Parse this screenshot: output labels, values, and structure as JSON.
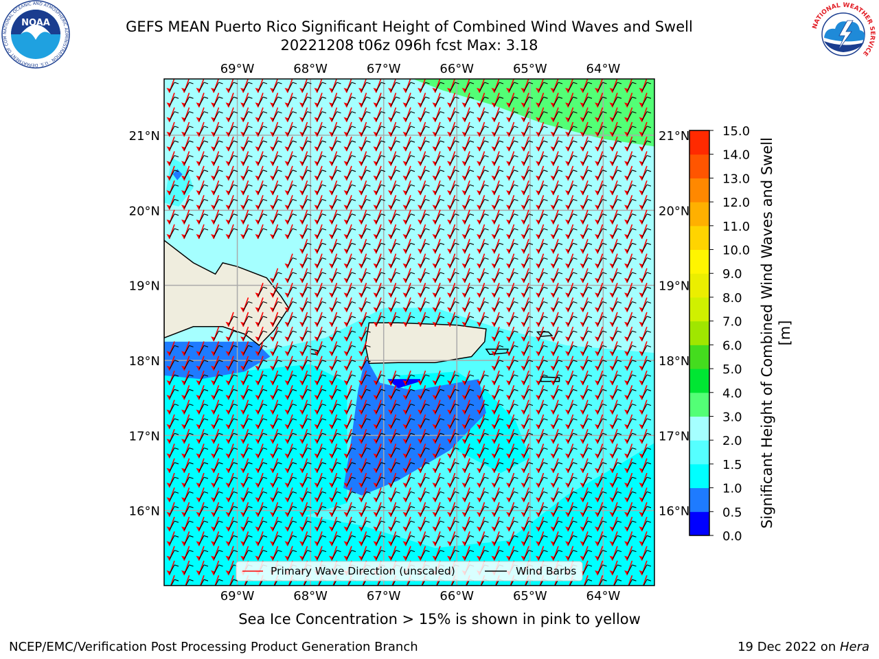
{
  "title": {
    "line1": "GEFS MEAN Puerto Rico Significant Height of Combined Wind Waves and Swell",
    "line2": "20221208 t06z 096h fcst   Max: 3.18"
  },
  "map": {
    "lon_labels": [
      "69°W",
      "68°W",
      "67°W",
      "66°W",
      "65°W",
      "64°W"
    ],
    "lat_labels": [
      "21°N",
      "20°N",
      "19°N",
      "18°N",
      "17°N",
      "16°N"
    ],
    "lon_values": [
      -69,
      -68,
      -67,
      -66,
      -65,
      -64
    ],
    "lat_values": [
      21,
      20,
      19,
      18,
      17,
      16
    ],
    "extent": {
      "lon_min": -70,
      "lon_max": -63.3,
      "lat_min": 15,
      "lat_max": 21.75
    },
    "legend": {
      "wave_direction": "Primary Wave Direction (unscaled)",
      "wind_barbs": "Wind Barbs"
    },
    "colors": {
      "wave_arrow": "#ff0000",
      "wind_barb": "#000000",
      "land": "#efedde",
      "coast": "#000000"
    }
  },
  "colorbar": {
    "label": "Significant Height of Combined Wind Waves and Swell [m]",
    "ticks": [
      "0.0",
      "0.5",
      "1.0",
      "1.5",
      "2.0",
      "3.0",
      "4.0",
      "5.0",
      "6.0",
      "7.0",
      "8.0",
      "9.0",
      "10.0",
      "11.0",
      "12.0",
      "13.0",
      "14.0",
      "15.0"
    ],
    "colors": [
      "#0000ff",
      "#1e7bff",
      "#00ffff",
      "#55ffff",
      "#a5ffff",
      "#53ff76",
      "#00e633",
      "#44dc1e",
      "#a0e600",
      "#d0f000",
      "#ebee00",
      "#fff500",
      "#ffd400",
      "#ffb000",
      "#ff8800",
      "#ff5500",
      "#ff2a00"
    ]
  },
  "caption": "Sea Ice Concentration > 15% is shown in pink to yellow",
  "footer": {
    "left": "NCEP/EMC/Verification Post Processing Product Generation Branch",
    "right_prefix": "19 Dec 2022 on ",
    "right_machine": "Hera"
  },
  "logos": {
    "noaa": "NOAA",
    "noaa_ring": "NATIONAL OCEANIC AND ATMOSPHERIC ADMINISTRATION · U.S. DEPARTMENT OF COMMERCE",
    "nws_ring": "NATIONAL WEATHER SERVICE"
  }
}
